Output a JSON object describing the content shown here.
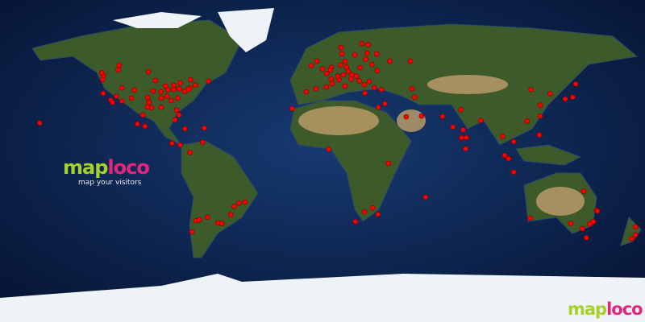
{
  "brand": {
    "part1": "map",
    "part2": "loco",
    "tagline": "map your visitors"
  },
  "colors": {
    "ocean": "#0c2350",
    "land": "#3c5a2a",
    "desert": "#b89a68",
    "ice": "#eef3f8",
    "marker": "#ff0000",
    "logo_green": "#a6d02c",
    "logo_pink": "#e2267e"
  },
  "projection": "equirectangular",
  "visitor_locations": [
    [
      47.6,
      -122.3
    ],
    [
      45.5,
      -122.7
    ],
    [
      37.8,
      -122.4
    ],
    [
      34,
      -118.2
    ],
    [
      32.7,
      -117.2
    ],
    [
      36.2,
      -115.1
    ],
    [
      33.4,
      -112
    ],
    [
      39.7,
      -105
    ],
    [
      40.8,
      -111.9
    ],
    [
      32.8,
      -96.8
    ],
    [
      29.8,
      -95.4
    ],
    [
      30.3,
      -97.7
    ],
    [
      41.9,
      -87.6
    ],
    [
      42.3,
      -83
    ],
    [
      40.7,
      -74
    ],
    [
      42.4,
      -71
    ],
    [
      40,
      -75.2
    ],
    [
      38.9,
      -77
    ],
    [
      33.7,
      -84.4
    ],
    [
      25.8,
      -80.2
    ],
    [
      28.5,
      -81.4
    ],
    [
      43.7,
      -79.4
    ],
    [
      45.5,
      -73.6
    ],
    [
      49.3,
      -123.1
    ],
    [
      51,
      -114
    ],
    [
      53.5,
      -113.5
    ],
    [
      49.9,
      -97.1
    ],
    [
      45,
      -93.3
    ],
    [
      38.6,
      -90.2
    ],
    [
      39.1,
      -94.6
    ],
    [
      36.2,
      -86.8
    ],
    [
      35.2,
      -80.8
    ],
    [
      40,
      -83
    ],
    [
      40.4,
      -80
    ],
    [
      39.8,
      -86.2
    ],
    [
      35.1,
      -90
    ],
    [
      30,
      -90
    ],
    [
      35.5,
      -97.5
    ],
    [
      35.1,
      -106.6
    ],
    [
      19.4,
      -99.1
    ],
    [
      20.7,
      -103.3
    ],
    [
      25.7,
      -100.3
    ],
    [
      21.3,
      -157.8
    ],
    [
      44.6,
      -63.6
    ],
    [
      23.1,
      -82.4
    ],
    [
      18.4,
      -66
    ],
    [
      18,
      -76.8
    ],
    [
      9,
      -79.5
    ],
    [
      9.9,
      -84
    ],
    [
      10.5,
      -66.9
    ],
    [
      4.7,
      -74
    ],
    [
      -23.5,
      -46.6
    ],
    [
      -22.9,
      -43.2
    ],
    [
      -34.6,
      -58.4
    ],
    [
      -33.4,
      -70.6
    ],
    [
      -30,
      -51.2
    ],
    [
      -25.4,
      -49.3
    ],
    [
      -34.9,
      -56.2
    ],
    [
      -31.4,
      -64.2
    ],
    [
      -32.9,
      -68.8
    ],
    [
      -39.6,
      -72.9
    ],
    [
      51.5,
      -0.1
    ],
    [
      48.9,
      2.4
    ],
    [
      40.4,
      -3.7
    ],
    [
      38.7,
      -9.1
    ],
    [
      41.4,
      2.2
    ],
    [
      41.9,
      12.5
    ],
    [
      45.5,
      9.2
    ],
    [
      52.5,
      13.4
    ],
    [
      48.1,
      11.6
    ],
    [
      52.4,
      4.9
    ],
    [
      50.8,
      4.4
    ],
    [
      48.2,
      16.4
    ],
    [
      50.1,
      14.4
    ],
    [
      52.2,
      21
    ],
    [
      47.5,
      19
    ],
    [
      59.3,
      18.1
    ],
    [
      59.9,
      10.8
    ],
    [
      60.2,
      24.9
    ],
    [
      55.7,
      12.6
    ],
    [
      53.3,
      -6.3
    ],
    [
      55.9,
      -3.2
    ],
    [
      38,
      23.7
    ],
    [
      41,
      29
    ],
    [
      44.4,
      26.1
    ],
    [
      42.7,
      23.3
    ],
    [
      44.8,
      20.5
    ],
    [
      45.8,
      16
    ],
    [
      50.5,
      30.5
    ],
    [
      55.8,
      37.6
    ],
    [
      59.9,
      30.3
    ],
    [
      56.9,
      24.1
    ],
    [
      53.9,
      27.6
    ],
    [
      47.4,
      8.5
    ],
    [
      45.8,
      4.8
    ],
    [
      43.3,
      5.4
    ],
    [
      53.6,
      10
    ],
    [
      55.8,
      49.1
    ],
    [
      63.4,
      10.4
    ],
    [
      65,
      25.5
    ],
    [
      65.6,
      22
    ],
    [
      39.9,
      32.9
    ],
    [
      32.1,
      34.8
    ],
    [
      30,
      31.2
    ],
    [
      35.7,
      51.4
    ],
    [
      25.2,
      55.3
    ],
    [
      24.7,
      46.7
    ],
    [
      40.4,
      49.9
    ],
    [
      29.3,
      -17
    ],
    [
      28.6,
      77.2
    ],
    [
      19,
      72.8
    ],
    [
      13,
      77.6
    ],
    [
      13.1,
      80.3
    ],
    [
      22.6,
      88.4
    ],
    [
      17.4,
      78.5
    ],
    [
      24.9,
      67
    ],
    [
      13.8,
      100.5
    ],
    [
      1.3,
      103.8
    ],
    [
      3.1,
      101.7
    ],
    [
      -6.2,
      106.8
    ],
    [
      14.6,
      121
    ],
    [
      22.3,
      114.2
    ],
    [
      31.2,
      121.5
    ],
    [
      39.9,
      116.4
    ],
    [
      37.6,
      127
    ],
    [
      35.7,
      139.7
    ],
    [
      34.7,
      135.5
    ],
    [
      25,
      121.5
    ],
    [
      10.8,
      106.7
    ],
    [
      43,
      141.3
    ],
    [
      6.9,
      79.9
    ],
    [
      -26.2,
      28
    ],
    [
      -33.9,
      18.4
    ],
    [
      -29.9,
      31
    ],
    [
      -1.3,
      36.8
    ],
    [
      6.5,
      3.4
    ],
    [
      -20.2,
      57.5
    ],
    [
      -28.4,
      23.4
    ],
    [
      -33.9,
      151.2
    ],
    [
      -37.8,
      145
    ],
    [
      -27.5,
      153
    ],
    [
      -32,
      115.9
    ],
    [
      -34.9,
      138.6
    ],
    [
      -35.3,
      149.1
    ],
    [
      -42.9,
      147.3
    ],
    [
      -36.8,
      174.8
    ],
    [
      -41.3,
      174.8
    ],
    [
      -43.5,
      172.6
    ],
    [
      -16.9,
      145.8
    ],
    [
      -28,
      153.4
    ]
  ]
}
